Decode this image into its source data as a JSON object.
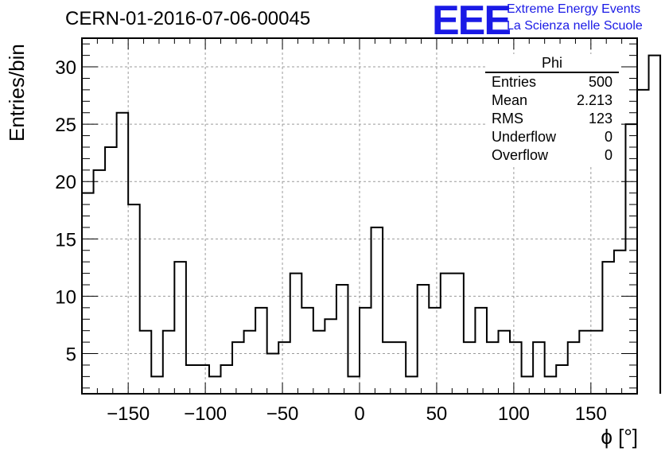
{
  "title": "CERN-01-2016-07-06-00045",
  "logo": {
    "mark": "EEE",
    "line1": "Extreme Energy Events",
    "line2": "La Scienza nelle Scuole",
    "color": "#1a1ae6"
  },
  "stats_box": {
    "title": "Phi",
    "rows": [
      {
        "label": "Entries",
        "value": "500"
      },
      {
        "label": "Mean",
        "value": "2.213"
      },
      {
        "label": "RMS",
        "value": "123"
      },
      {
        "label": "Underflow",
        "value": "0"
      },
      {
        "label": "Overflow",
        "value": "0"
      }
    ]
  },
  "chart_data": {
    "type": "histogram",
    "title": "CERN-01-2016-07-06-00045",
    "xlabel": "ϕ [°]",
    "ylabel": "Entries/bin",
    "xlim": [
      -180,
      180
    ],
    "ylim": [
      1.5,
      32.5
    ],
    "grid": true,
    "bin_width": 7.5,
    "bin_edges_start": -180,
    "values": [
      19,
      21,
      23,
      26,
      18,
      7,
      3,
      7,
      13,
      4,
      4,
      3,
      4,
      6,
      7,
      9,
      5,
      6,
      12,
      9,
      7,
      8,
      11,
      3,
      9,
      16,
      6,
      6,
      3,
      11,
      9,
      12,
      12,
      6,
      9,
      6,
      7,
      6,
      3,
      6,
      3,
      4,
      6,
      7,
      7,
      13,
      14,
      25,
      28,
      31
    ],
    "xticks": [
      -150,
      -100,
      -50,
      0,
      50,
      100,
      150
    ],
    "xtick_labels": [
      "−150",
      "−100",
      "−50",
      "0",
      "50",
      "100",
      "150"
    ],
    "yticks": [
      5,
      10,
      15,
      20,
      25,
      30
    ],
    "ytick_labels": [
      "5",
      "10",
      "15",
      "20",
      "25",
      "30"
    ]
  }
}
